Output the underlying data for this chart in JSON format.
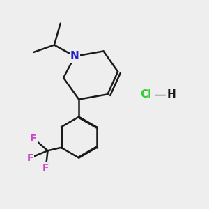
{
  "background_color": "#eeeeee",
  "bond_color": "#1a1a1a",
  "nitrogen_color": "#2020cc",
  "fluorine_color": "#cc44cc",
  "hcl_cl_color": "#33cc33",
  "line_width": 1.8,
  "fig_size": [
    3.0,
    3.0
  ],
  "dpi": 100,
  "xlim": [
    0,
    10
  ],
  "ylim": [
    0,
    10
  ]
}
